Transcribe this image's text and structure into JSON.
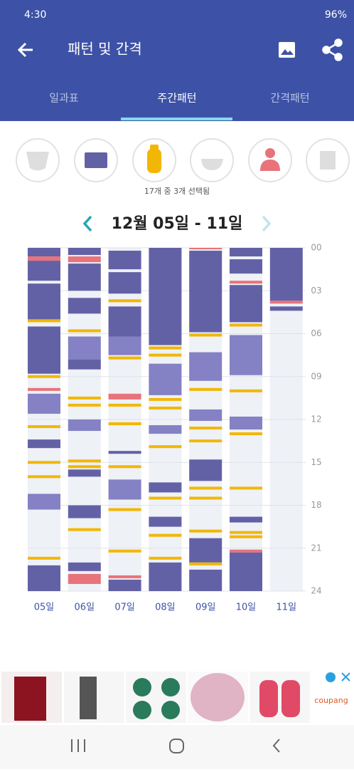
{
  "status": {
    "time": "4:30",
    "battery": "96%"
  },
  "header": {
    "title": "패턴 및 간격"
  },
  "tabs": {
    "items": [
      "일과표",
      "주간패턴",
      "간격패턴"
    ],
    "selected": 1
  },
  "filter": {
    "selected_text": "17개 중 3개 선택됨"
  },
  "range": {
    "title": "12월 05일 - 11일"
  },
  "chart_data": {
    "type": "timeline",
    "categories": [
      "05일",
      "06일",
      "07일",
      "08일",
      "09일",
      "10일",
      "11일"
    ],
    "ylim": [
      0,
      24
    ],
    "yticks": [
      {
        "value": 0,
        "label": "00"
      },
      {
        "value": 3,
        "label": "03"
      },
      {
        "value": 6,
        "label": "06"
      },
      {
        "value": 9,
        "label": "09"
      },
      12,
      15,
      18,
      21,
      24
    ],
    "grid": true,
    "segments": [
      [
        {
          "start": 0,
          "end": 0.6,
          "color": "#6361a6"
        },
        {
          "start": 0.6,
          "end": 0.9,
          "color": "#e8737b"
        },
        {
          "start": 0.9,
          "end": 2.3,
          "color": "#6361a6"
        },
        {
          "start": 2.5,
          "end": 5.0,
          "color": "#6361a6"
        },
        {
          "start": 5.0,
          "end": 5.2,
          "color": "#f2b705"
        },
        {
          "start": 5.5,
          "end": 8.8,
          "color": "#6361a6"
        },
        {
          "start": 8.9,
          "end": 9.1,
          "color": "#f2b705"
        },
        {
          "start": 9.8,
          "end": 10.0,
          "color": "#e8737b"
        },
        {
          "start": 10.2,
          "end": 11.6,
          "color": "#8481c4"
        },
        {
          "start": 12.4,
          "end": 12.6,
          "color": "#f2b705"
        },
        {
          "start": 13.4,
          "end": 14.0,
          "color": "#6361a6"
        },
        {
          "start": 14.9,
          "end": 15.1,
          "color": "#f2b705"
        },
        {
          "start": 15.9,
          "end": 16.1,
          "color": "#f2b705"
        },
        {
          "start": 17.2,
          "end": 18.3,
          "color": "#8481c4"
        },
        {
          "start": 21.6,
          "end": 21.8,
          "color": "#f2b705"
        },
        {
          "start": 22.2,
          "end": 24,
          "color": "#6361a6"
        }
      ],
      [
        {
          "start": 0,
          "end": 0.5,
          "color": "#6361a6"
        },
        {
          "start": 0.6,
          "end": 1.0,
          "color": "#e8737b"
        },
        {
          "start": 1.1,
          "end": 3.0,
          "color": "#6361a6"
        },
        {
          "start": 3.5,
          "end": 4.6,
          "color": "#6361a6"
        },
        {
          "start": 5.7,
          "end": 5.9,
          "color": "#f2b705"
        },
        {
          "start": 6.2,
          "end": 7.8,
          "color": "#8481c4"
        },
        {
          "start": 7.8,
          "end": 8.5,
          "color": "#6361a6"
        },
        {
          "start": 10.4,
          "end": 10.6,
          "color": "#f2b705"
        },
        {
          "start": 10.9,
          "end": 11.1,
          "color": "#f2b705"
        },
        {
          "start": 12.0,
          "end": 12.8,
          "color": "#8481c4"
        },
        {
          "start": 14.8,
          "end": 15.0,
          "color": "#f2b705"
        },
        {
          "start": 15.2,
          "end": 15.4,
          "color": "#f2b705"
        },
        {
          "start": 15.5,
          "end": 16.0,
          "color": "#6361a6"
        },
        {
          "start": 18.0,
          "end": 18.9,
          "color": "#6361a6"
        },
        {
          "start": 19.6,
          "end": 19.8,
          "color": "#f2b705"
        },
        {
          "start": 22.0,
          "end": 22.6,
          "color": "#6361a6"
        },
        {
          "start": 22.8,
          "end": 23.5,
          "color": "#e8737b"
        }
      ],
      [
        {
          "start": 0.2,
          "end": 1.5,
          "color": "#6361a6"
        },
        {
          "start": 1.7,
          "end": 3.2,
          "color": "#6361a6"
        },
        {
          "start": 3.6,
          "end": 3.8,
          "color": "#f2b705"
        },
        {
          "start": 4.1,
          "end": 6.2,
          "color": "#6361a6"
        },
        {
          "start": 6.2,
          "end": 7.5,
          "color": "#8481c4"
        },
        {
          "start": 7.6,
          "end": 7.8,
          "color": "#f2b705"
        },
        {
          "start": 10.2,
          "end": 10.6,
          "color": "#e8737b"
        },
        {
          "start": 10.9,
          "end": 11.1,
          "color": "#f2b705"
        },
        {
          "start": 12.2,
          "end": 12.4,
          "color": "#f2b705"
        },
        {
          "start": 14.2,
          "end": 14.4,
          "color": "#6361a6"
        },
        {
          "start": 15.2,
          "end": 15.4,
          "color": "#f2b705"
        },
        {
          "start": 16.2,
          "end": 17.6,
          "color": "#8481c4"
        },
        {
          "start": 18.2,
          "end": 18.4,
          "color": "#f2b705"
        },
        {
          "start": 21.1,
          "end": 21.3,
          "color": "#f2b705"
        },
        {
          "start": 22.9,
          "end": 23.1,
          "color": "#e8737b"
        },
        {
          "start": 23.2,
          "end": 24,
          "color": "#6361a6"
        }
      ],
      [
        {
          "start": 0,
          "end": 6.8,
          "color": "#6361a6"
        },
        {
          "start": 6.9,
          "end": 7.1,
          "color": "#f2b705"
        },
        {
          "start": 7.4,
          "end": 7.6,
          "color": "#f2b705"
        },
        {
          "start": 8.1,
          "end": 10.3,
          "color": "#8481c4"
        },
        {
          "start": 10.5,
          "end": 10.7,
          "color": "#f2b705"
        },
        {
          "start": 11.1,
          "end": 11.3,
          "color": "#f2b705"
        },
        {
          "start": 12.4,
          "end": 13.0,
          "color": "#8481c4"
        },
        {
          "start": 13.8,
          "end": 14.0,
          "color": "#f2b705"
        },
        {
          "start": 16.4,
          "end": 17.1,
          "color": "#6361a6"
        },
        {
          "start": 17.4,
          "end": 17.6,
          "color": "#f2b705"
        },
        {
          "start": 18.8,
          "end": 19.5,
          "color": "#6361a6"
        },
        {
          "start": 20.0,
          "end": 20.2,
          "color": "#f2b705"
        },
        {
          "start": 21.6,
          "end": 21.8,
          "color": "#f2b705"
        },
        {
          "start": 22.0,
          "end": 24,
          "color": "#6361a6"
        }
      ],
      [
        {
          "start": 0,
          "end": 0.1,
          "color": "#e8737b"
        },
        {
          "start": 0.2,
          "end": 5.9,
          "color": "#6361a6"
        },
        {
          "start": 6.0,
          "end": 6.2,
          "color": "#f2b705"
        },
        {
          "start": 7.3,
          "end": 9.3,
          "color": "#8481c4"
        },
        {
          "start": 9.8,
          "end": 10.0,
          "color": "#f2b705"
        },
        {
          "start": 11.3,
          "end": 12.1,
          "color": "#8481c4"
        },
        {
          "start": 12.5,
          "end": 12.7,
          "color": "#f2b705"
        },
        {
          "start": 13.4,
          "end": 13.6,
          "color": "#f2b705"
        },
        {
          "start": 14.8,
          "end": 16.3,
          "color": "#6361a6"
        },
        {
          "start": 16.7,
          "end": 16.9,
          "color": "#f2b705"
        },
        {
          "start": 17.4,
          "end": 17.6,
          "color": "#f2b705"
        },
        {
          "start": 19.7,
          "end": 19.9,
          "color": "#f2b705"
        },
        {
          "start": 20.3,
          "end": 22.0,
          "color": "#6361a6"
        },
        {
          "start": 22.0,
          "end": 22.2,
          "color": "#f2b705"
        },
        {
          "start": 22.5,
          "end": 24,
          "color": "#6361a6"
        }
      ],
      [
        {
          "start": 0,
          "end": 0.6,
          "color": "#6361a6"
        },
        {
          "start": 0.8,
          "end": 1.8,
          "color": "#6361a6"
        },
        {
          "start": 2.3,
          "end": 2.5,
          "color": "#e8737b"
        },
        {
          "start": 2.6,
          "end": 5.2,
          "color": "#6361a6"
        },
        {
          "start": 5.3,
          "end": 5.5,
          "color": "#f2b705"
        },
        {
          "start": 6.1,
          "end": 8.9,
          "color": "#8481c4"
        },
        {
          "start": 9.9,
          "end": 10.1,
          "color": "#f2b705"
        },
        {
          "start": 11.8,
          "end": 12.7,
          "color": "#8481c4"
        },
        {
          "start": 12.9,
          "end": 13.1,
          "color": "#f2b705"
        },
        {
          "start": 16.7,
          "end": 16.9,
          "color": "#f2b705"
        },
        {
          "start": 18.8,
          "end": 19.2,
          "color": "#6361a6"
        },
        {
          "start": 19.8,
          "end": 20.0,
          "color": "#f2b705"
        },
        {
          "start": 20.1,
          "end": 20.3,
          "color": "#f2b705"
        },
        {
          "start": 21.1,
          "end": 21.3,
          "color": "#e8737b"
        },
        {
          "start": 21.3,
          "end": 24,
          "color": "#6361a6"
        }
      ],
      [
        {
          "start": 0,
          "end": 3.7,
          "color": "#6361a6"
        },
        {
          "start": 3.7,
          "end": 3.9,
          "color": "#e8737b"
        },
        {
          "start": 4.1,
          "end": 4.4,
          "color": "#6361a6"
        }
      ]
    ]
  },
  "ad": {
    "brand": "coupang"
  }
}
